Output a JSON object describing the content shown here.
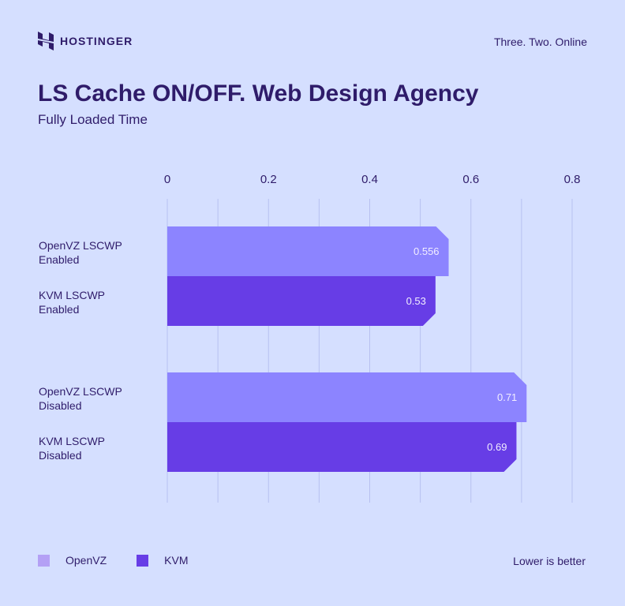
{
  "header": {
    "brand": "HOSTINGER",
    "tagline": "Three. Two. Online",
    "logo_icon": "hostinger-h-logo"
  },
  "chart_data": {
    "type": "bar",
    "orientation": "horizontal",
    "title": "LS Cache ON/OFF. Web Design Agency",
    "subtitle": "Fully Loaded Time",
    "categories": [
      "OpenVZ LSCWP Enabled",
      "KVM LSCWP Enabled",
      "OpenVZ LSCWP Disabled",
      "KVM LSCWP Disabled"
    ],
    "category_lines": [
      [
        "OpenVZ LSCWP",
        "Enabled"
      ],
      [
        "KVM LSCWP",
        "Enabled"
      ],
      [
        "OpenVZ LSCWP",
        "Disabled"
      ],
      [
        "KVM LSCWP",
        "Disabled"
      ]
    ],
    "values": [
      0.556,
      0.53,
      0.71,
      0.69
    ],
    "value_labels": [
      "0.556",
      "0.53",
      "0.71",
      "0.69"
    ],
    "series_of_bar": [
      "OpenVZ",
      "KVM",
      "OpenVZ",
      "KVM"
    ],
    "xlim": [
      0,
      0.8
    ],
    "ticks": [
      "0",
      "0.2",
      "0.4",
      "0.6",
      "0.8"
    ],
    "tick_values": [
      0,
      0.2,
      0.4,
      0.6,
      0.8
    ],
    "grid": true,
    "legend": [
      {
        "name": "OpenVZ",
        "color": "#b4a0f5"
      },
      {
        "name": "KVM",
        "color": "#673de6"
      }
    ],
    "legend_placement": "bottom-left",
    "bar_colors": {
      "OpenVZ": "#8c84ff",
      "KVM": "#673de6"
    },
    "note": "Lower is better"
  }
}
